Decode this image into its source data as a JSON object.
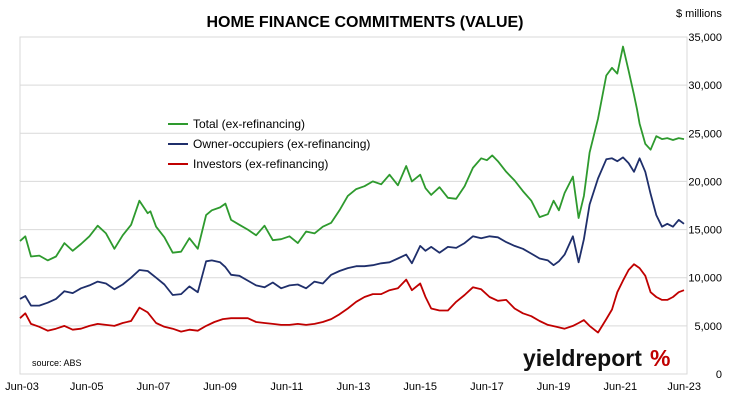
{
  "chart_data": {
    "type": "line",
    "title": "HOME FINANCE COMMITMENTS (VALUE)",
    "units": "$ millions",
    "source": "source: ABS",
    "brand": {
      "text": "yieldreport",
      "symbol": "%",
      "symbol_color": "#c00000"
    },
    "ylim": [
      0,
      35000
    ],
    "xlim": [
      2003.42,
      2023.42
    ],
    "grid": true,
    "legend_position": "upper-left",
    "x_ticks": [
      {
        "label": "Jun-03",
        "value": 2003.42
      },
      {
        "label": "Jun-05",
        "value": 2005.42
      },
      {
        "label": "Jun-07",
        "value": 2007.42
      },
      {
        "label": "Jun-09",
        "value": 2009.42
      },
      {
        "label": "Jun-11",
        "value": 2011.42
      },
      {
        "label": "Jun-13",
        "value": 2013.42
      },
      {
        "label": "Jun-15",
        "value": 2015.42
      },
      {
        "label": "Jun-17",
        "value": 2017.42
      },
      {
        "label": "Jun-19",
        "value": 2019.42
      },
      {
        "label": "Jun-21",
        "value": 2021.42
      },
      {
        "label": "Jun-23",
        "value": 2023.42
      }
    ],
    "y_ticks": [
      {
        "label": "0",
        "value": 0
      },
      {
        "label": "5,000",
        "value": 5000
      },
      {
        "label": "10,000",
        "value": 10000
      },
      {
        "label": "15,000",
        "value": 15000
      },
      {
        "label": "20,000",
        "value": 20000
      },
      {
        "label": "25,000",
        "value": 25000
      },
      {
        "label": "30,000",
        "value": 30000
      },
      {
        "label": "35,000",
        "value": 35000
      }
    ],
    "series": [
      {
        "name": "Total (ex-refinancing)",
        "color": "#2e9a2e",
        "x": [
          2003.42,
          2003.58,
          2003.75,
          2004.0,
          2004.25,
          2004.5,
          2004.75,
          2005.0,
          2005.25,
          2005.5,
          2005.75,
          2006.0,
          2006.25,
          2006.5,
          2006.75,
          2007.0,
          2007.25,
          2007.33,
          2007.5,
          2007.75,
          2008.0,
          2008.25,
          2008.5,
          2008.75,
          2009.0,
          2009.17,
          2009.42,
          2009.58,
          2009.75,
          2010.0,
          2010.25,
          2010.5,
          2010.75,
          2011.0,
          2011.25,
          2011.5,
          2011.75,
          2012.0,
          2012.25,
          2012.5,
          2012.75,
          2013.0,
          2013.25,
          2013.5,
          2013.75,
          2014.0,
          2014.25,
          2014.5,
          2014.75,
          2015.0,
          2015.17,
          2015.42,
          2015.58,
          2015.75,
          2016.0,
          2016.25,
          2016.5,
          2016.75,
          2017.0,
          2017.25,
          2017.42,
          2017.58,
          2017.75,
          2018.0,
          2018.25,
          2018.5,
          2018.75,
          2019.0,
          2019.25,
          2019.42,
          2019.58,
          2019.75,
          2020.0,
          2020.17,
          2020.33,
          2020.5,
          2020.75,
          2021.0,
          2021.17,
          2021.33,
          2021.5,
          2021.67,
          2021.83,
          2021.92,
          2022.0,
          2022.17,
          2022.33,
          2022.5,
          2022.67,
          2022.83,
          2023.0,
          2023.17,
          2023.33
        ],
        "values": [
          13800,
          14300,
          12200,
          12300,
          11800,
          12200,
          13600,
          12800,
          13500,
          14300,
          15400,
          14600,
          13000,
          14400,
          15500,
          18000,
          16700,
          16900,
          15300,
          14200,
          12600,
          12700,
          14100,
          13000,
          16500,
          17000,
          17300,
          17700,
          16000,
          15500,
          15000,
          14400,
          15400,
          13900,
          14000,
          14300,
          13600,
          14800,
          14600,
          15300,
          15700,
          17000,
          18500,
          19200,
          19500,
          20000,
          19700,
          20700,
          19600,
          21600,
          20000,
          20700,
          19300,
          18600,
          19400,
          18300,
          18200,
          19500,
          21400,
          22400,
          22200,
          22700,
          22100,
          21000,
          20100,
          19000,
          18000,
          16300,
          16600,
          18000,
          17000,
          18800,
          20500,
          16200,
          18500,
          23000,
          26500,
          31000,
          31800,
          31200,
          34000,
          31500,
          29000,
          27500,
          26000,
          23900,
          23300,
          24700,
          24400,
          24500,
          24300,
          24500,
          24400
        ]
      },
      {
        "name": "Owner-occupiers (ex-refinancing)",
        "color": "#1f2f6b",
        "x": [
          2003.42,
          2003.58,
          2003.75,
          2004.0,
          2004.25,
          2004.5,
          2004.75,
          2005.0,
          2005.25,
          2005.5,
          2005.75,
          2006.0,
          2006.25,
          2006.5,
          2006.75,
          2007.0,
          2007.25,
          2007.5,
          2007.75,
          2008.0,
          2008.25,
          2008.5,
          2008.75,
          2009.0,
          2009.17,
          2009.42,
          2009.58,
          2009.75,
          2010.0,
          2010.25,
          2010.5,
          2010.75,
          2011.0,
          2011.25,
          2011.5,
          2011.75,
          2012.0,
          2012.25,
          2012.5,
          2012.75,
          2013.0,
          2013.25,
          2013.5,
          2013.75,
          2014.0,
          2014.25,
          2014.5,
          2014.75,
          2015.0,
          2015.17,
          2015.42,
          2015.58,
          2015.75,
          2016.0,
          2016.25,
          2016.5,
          2016.75,
          2017.0,
          2017.25,
          2017.5,
          2017.75,
          2018.0,
          2018.25,
          2018.5,
          2018.75,
          2019.0,
          2019.25,
          2019.42,
          2019.58,
          2019.75,
          2020.0,
          2020.17,
          2020.33,
          2020.5,
          2020.75,
          2021.0,
          2021.17,
          2021.33,
          2021.5,
          2021.67,
          2021.83,
          2022.0,
          2022.17,
          2022.33,
          2022.5,
          2022.67,
          2022.83,
          2023.0,
          2023.17,
          2023.33
        ],
        "values": [
          7800,
          8100,
          7100,
          7100,
          7400,
          7800,
          8600,
          8400,
          8900,
          9200,
          9600,
          9400,
          8800,
          9300,
          10000,
          10800,
          10700,
          10000,
          9300,
          8200,
          8300,
          9100,
          8500,
          11700,
          11800,
          11600,
          11100,
          10300,
          10200,
          9700,
          9200,
          9000,
          9500,
          8900,
          9200,
          9300,
          8900,
          9600,
          9400,
          10300,
          10700,
          11000,
          11200,
          11200,
          11300,
          11500,
          11600,
          12000,
          12400,
          11500,
          13300,
          12800,
          13200,
          12600,
          13200,
          13100,
          13600,
          14300,
          14100,
          14300,
          14200,
          13700,
          13300,
          13000,
          12500,
          12000,
          11800,
          11300,
          11700,
          12400,
          14300,
          11600,
          14000,
          17600,
          20300,
          22300,
          22400,
          22100,
          22500,
          21900,
          21000,
          22400,
          21000,
          18700,
          16500,
          15300,
          15600,
          15300,
          16000,
          15600
        ]
      },
      {
        "name": "Investors (ex-refinancing)",
        "color": "#c00000",
        "x": [
          2003.42,
          2003.58,
          2003.75,
          2004.0,
          2004.25,
          2004.5,
          2004.75,
          2005.0,
          2005.25,
          2005.5,
          2005.75,
          2006.0,
          2006.25,
          2006.5,
          2006.75,
          2007.0,
          2007.25,
          2007.5,
          2007.75,
          2008.0,
          2008.25,
          2008.5,
          2008.75,
          2009.0,
          2009.25,
          2009.5,
          2009.75,
          2010.0,
          2010.25,
          2010.5,
          2010.75,
          2011.0,
          2011.25,
          2011.5,
          2011.75,
          2012.0,
          2012.25,
          2012.5,
          2012.75,
          2013.0,
          2013.25,
          2013.5,
          2013.75,
          2014.0,
          2014.25,
          2014.5,
          2014.75,
          2015.0,
          2015.17,
          2015.42,
          2015.58,
          2015.75,
          2016.0,
          2016.25,
          2016.5,
          2016.75,
          2017.0,
          2017.25,
          2017.5,
          2017.75,
          2018.0,
          2018.25,
          2018.5,
          2018.75,
          2019.0,
          2019.25,
          2019.5,
          2019.75,
          2020.0,
          2020.17,
          2020.33,
          2020.5,
          2020.75,
          2021.0,
          2021.17,
          2021.33,
          2021.5,
          2021.67,
          2021.83,
          2022.0,
          2022.17,
          2022.33,
          2022.5,
          2022.67,
          2022.83,
          2023.0,
          2023.17,
          2023.33
        ],
        "values": [
          5800,
          6300,
          5200,
          4900,
          4500,
          4700,
          5000,
          4600,
          4700,
          5000,
          5200,
          5100,
          5000,
          5300,
          5500,
          6900,
          6400,
          5300,
          4900,
          4700,
          4400,
          4600,
          4500,
          5000,
          5400,
          5700,
          5800,
          5800,
          5800,
          5400,
          5300,
          5200,
          5100,
          5100,
          5200,
          5100,
          5200,
          5400,
          5700,
          6200,
          6800,
          7500,
          8000,
          8300,
          8300,
          8700,
          8900,
          9800,
          8700,
          9400,
          8000,
          6800,
          6600,
          6600,
          7500,
          8200,
          9000,
          8800,
          8000,
          7600,
          7700,
          6800,
          6300,
          6000,
          5500,
          5100,
          4900,
          4700,
          5000,
          5300,
          5600,
          5000,
          4300,
          5700,
          6700,
          8500,
          9700,
          10800,
          11400,
          11000,
          10200,
          8500,
          8000,
          7700,
          7700,
          8000,
          8500,
          8700
        ]
      }
    ]
  }
}
